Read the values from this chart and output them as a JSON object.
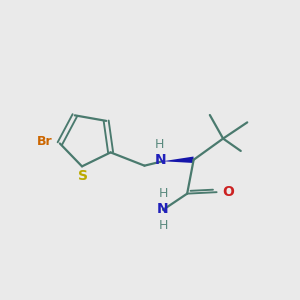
{
  "bg_color": "#EAEAEA",
  "bond_color": "#4A7A6E",
  "bond_lw": 1.6,
  "N_color": "#2020BB",
  "NH_color": "#5A8A7E",
  "O_color": "#CC2222",
  "Br_color": "#CC6600",
  "S_color": "#BBAA00",
  "wedge_color": "#1515AA",
  "figsize": [
    3.0,
    3.0
  ],
  "dpi": 100,
  "xlim": [
    0,
    10
  ],
  "ylim": [
    0,
    10
  ]
}
